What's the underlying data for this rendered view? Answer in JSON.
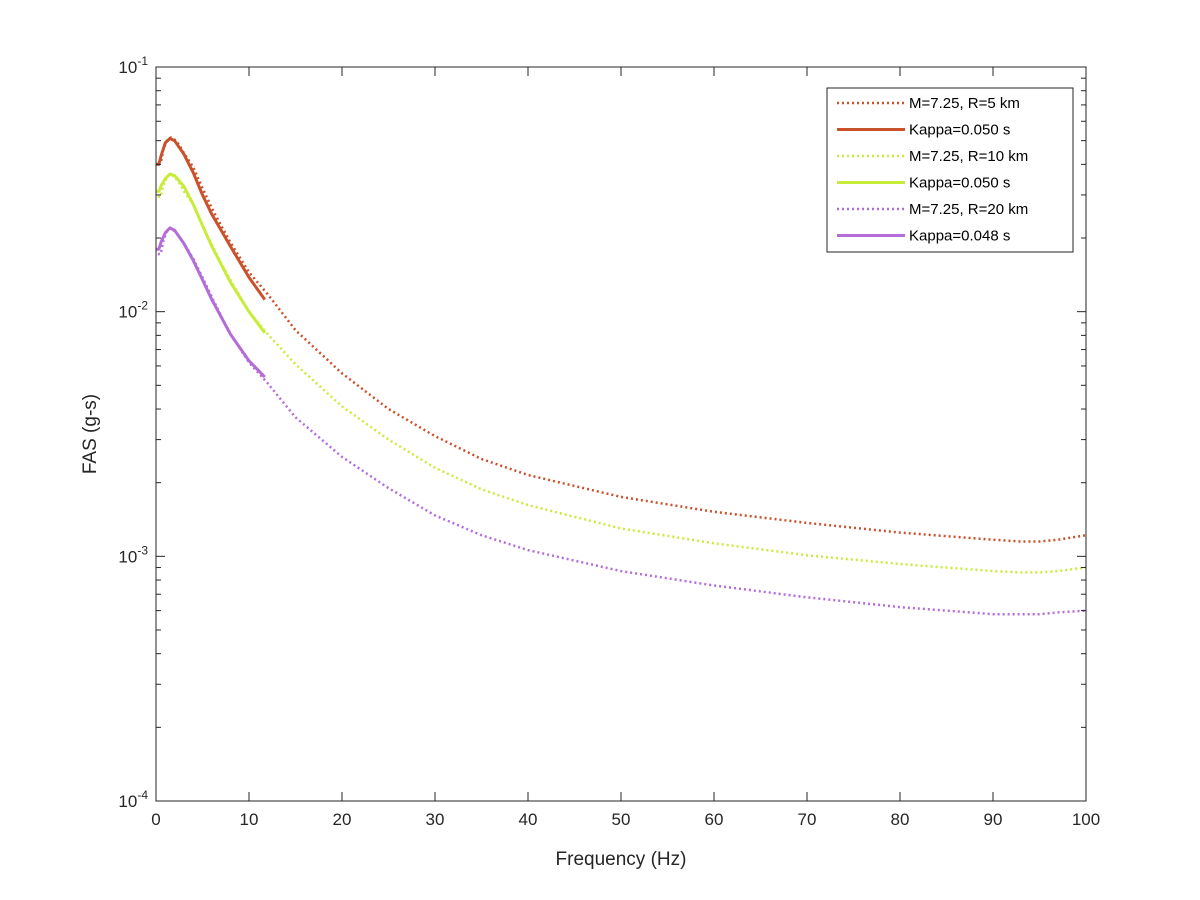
{
  "chart_data": {
    "type": "line",
    "title": "",
    "xlabel": "Frequency (Hz)",
    "ylabel": "FAS (g-s)",
    "xlim": [
      0,
      100
    ],
    "ylim": [
      0.0001,
      0.1
    ],
    "yscale": "log",
    "grid": false,
    "legend_position": "top-right",
    "x_ticks": [
      0,
      10,
      20,
      30,
      40,
      50,
      60,
      70,
      80,
      90,
      100
    ],
    "x_tick_labels": [
      "0",
      "10",
      "20",
      "30",
      "40",
      "50",
      "60",
      "70",
      "80",
      "90",
      "100"
    ],
    "y_ticks": [
      0.0001,
      0.001,
      0.01,
      0.1
    ],
    "y_tick_labels": [
      {
        "base": "10",
        "exp": "-4"
      },
      {
        "base": "10",
        "exp": "-3"
      },
      {
        "base": "10",
        "exp": "-2"
      },
      {
        "base": "10",
        "exp": "-1"
      }
    ],
    "series": [
      {
        "name": "M=7.25, R=5 km",
        "color": "#C9512B",
        "style": "dotted",
        "x": [
          0.2,
          0.5,
          0.8,
          1.2,
          1.6,
          2.0,
          2.5,
          3.0,
          4.0,
          5.0,
          6.0,
          7.0,
          8.0,
          10.0,
          12.0,
          15.0,
          20.0,
          25.0,
          30.0,
          35.0,
          40.0,
          50.0,
          60.0,
          70.0,
          80.0,
          90.0,
          93.0,
          95.0,
          97.0,
          100.0
        ],
        "y": [
          0.0405,
          0.0405,
          0.046,
          0.0505,
          0.0515,
          0.0505,
          0.048,
          0.0445,
          0.039,
          0.032,
          0.0265,
          0.0225,
          0.0192,
          0.0145,
          0.0118,
          0.0084,
          0.0056,
          0.004,
          0.0031,
          0.0025,
          0.00215,
          0.00175,
          0.00152,
          0.00137,
          0.00125,
          0.00117,
          0.00115,
          0.00115,
          0.00117,
          0.00122
        ]
      },
      {
        "name": "Kappa=0.050 s",
        "color": "#C9512B",
        "style": "solid",
        "x": [
          0.0,
          0.3,
          0.6,
          1.0,
          1.5,
          2.0,
          3.0,
          4.0,
          5.0,
          6.0,
          8.0,
          10.0,
          11.7
        ],
        "y": [
          0.04,
          0.04,
          0.044,
          0.049,
          0.051,
          0.05,
          0.044,
          0.037,
          0.03,
          0.025,
          0.0185,
          0.0138,
          0.0112
        ]
      },
      {
        "name": "M=7.25, R=10 km",
        "color": "#C8EC3A",
        "style": "dotted",
        "x": [
          0.2,
          0.5,
          0.8,
          1.2,
          1.6,
          2.0,
          2.5,
          3.0,
          4.0,
          5.0,
          6.0,
          7.0,
          8.0,
          10.0,
          12.0,
          15.0,
          20.0,
          25.0,
          30.0,
          35.0,
          40.0,
          50.0,
          60.0,
          70.0,
          80.0,
          90.0,
          93.0,
          95.0,
          97.0,
          100.0
        ],
        "y": [
          0.0295,
          0.0295,
          0.033,
          0.0355,
          0.0365,
          0.0355,
          0.0335,
          0.031,
          0.0275,
          0.0225,
          0.0188,
          0.0158,
          0.0135,
          0.01,
          0.0081,
          0.0061,
          0.0041,
          0.003,
          0.0023,
          0.00188,
          0.00162,
          0.0013,
          0.00113,
          0.00101,
          0.00093,
          0.00087,
          0.00086,
          0.00086,
          0.00087,
          0.0009
        ]
      },
      {
        "name": "Kappa=0.050 s",
        "color": "#C8EC3A",
        "style": "solid",
        "x": [
          0.0,
          0.3,
          0.6,
          1.0,
          1.5,
          2.0,
          3.0,
          4.0,
          5.0,
          6.0,
          8.0,
          10.0,
          11.7
        ],
        "y": [
          0.031,
          0.031,
          0.033,
          0.035,
          0.0365,
          0.036,
          0.0325,
          0.0275,
          0.0225,
          0.0185,
          0.0132,
          0.01,
          0.0082
        ]
      },
      {
        "name": "M=7.25, R=20 km",
        "color": "#B46DD8",
        "style": "dotted",
        "x": [
          0.2,
          0.5,
          0.8,
          1.2,
          1.6,
          2.0,
          2.5,
          3.0,
          4.0,
          5.0,
          6.0,
          7.0,
          8.0,
          10.0,
          12.0,
          15.0,
          20.0,
          25.0,
          30.0,
          35.0,
          40.0,
          50.0,
          60.0,
          70.0,
          80.0,
          90.0,
          93.0,
          95.0,
          97.0,
          100.0
        ],
        "y": [
          0.0172,
          0.0172,
          0.0195,
          0.0215,
          0.022,
          0.0213,
          0.0203,
          0.019,
          0.0165,
          0.0138,
          0.0115,
          0.0096,
          0.0081,
          0.0062,
          0.0051,
          0.0037,
          0.00255,
          0.0019,
          0.00147,
          0.00122,
          0.00106,
          0.00087,
          0.00076,
          0.00068,
          0.00062,
          0.00058,
          0.00058,
          0.00058,
          0.00059,
          0.0006
        ]
      },
      {
        "name": "Kappa=0.048 s",
        "color": "#B46DD8",
        "style": "solid",
        "x": [
          0.0,
          0.3,
          0.6,
          1.0,
          1.5,
          2.0,
          3.0,
          4.0,
          5.0,
          6.0,
          8.0,
          10.0,
          11.7
        ],
        "y": [
          0.018,
          0.018,
          0.0195,
          0.021,
          0.022,
          0.0215,
          0.019,
          0.0162,
          0.0135,
          0.0112,
          0.0081,
          0.0063,
          0.0054
        ]
      }
    ]
  }
}
